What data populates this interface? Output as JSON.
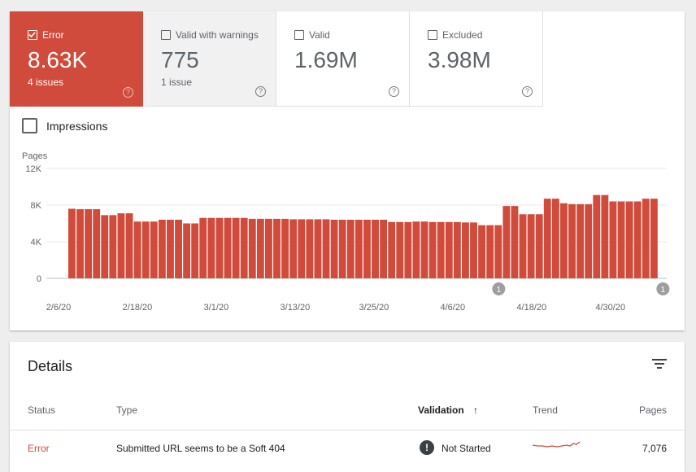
{
  "tiles": [
    {
      "label": "Error",
      "value": "8.63K",
      "sub": "4 issues",
      "checked": true
    },
    {
      "label": "Valid with warnings",
      "value": "775",
      "sub": "1 issue",
      "checked": false
    },
    {
      "label": "Valid",
      "value": "1.69M",
      "sub": "",
      "checked": false
    },
    {
      "label": "Excluded",
      "value": "3.98M",
      "sub": "",
      "checked": false
    }
  ],
  "help_glyph": "?",
  "impressions_label": "Impressions",
  "chart_data": {
    "type": "bar",
    "ylabel": "Pages",
    "ylim": [
      0,
      12000
    ],
    "yticks": [
      0,
      4000,
      8000,
      12000
    ],
    "ytick_labels": [
      "0",
      "4K",
      "8K",
      "12K"
    ],
    "xtick_labels": [
      "2/6/20",
      "2/18/20",
      "3/1/20",
      "3/13/20",
      "3/25/20",
      "4/6/20",
      "4/18/20",
      "4/30/20"
    ],
    "xtick_indices": [
      0,
      12,
      24,
      36,
      48,
      60,
      72,
      84
    ],
    "annotations": [
      {
        "index": 67,
        "label": "1"
      },
      {
        "index": 92,
        "label": "1"
      }
    ],
    "values": [
      7600,
      7550,
      7550,
      7550,
      6900,
      6900,
      7100,
      7100,
      6200,
      6200,
      6200,
      6400,
      6400,
      6400,
      6000,
      6000,
      6600,
      6600,
      6600,
      6600,
      6600,
      6600,
      6500,
      6500,
      6500,
      6500,
      6500,
      6450,
      6450,
      6450,
      6450,
      6450,
      6400,
      6400,
      6400,
      6400,
      6400,
      6400,
      6400,
      6150,
      6150,
      6150,
      6200,
      6200,
      6150,
      6150,
      6150,
      6150,
      6100,
      6100,
      5800,
      5800,
      5800,
      7900,
      7900,
      7000,
      7000,
      7000,
      8700,
      8700,
      8200,
      8100,
      8100,
      8100,
      9100,
      9100,
      8400,
      8400,
      8400,
      8400,
      8700,
      8700
    ]
  },
  "details": {
    "title": "Details",
    "columns": {
      "status": "Status",
      "type": "Type",
      "validation": "Validation",
      "sort_arrow": "↑",
      "trend": "Trend",
      "pages": "Pages"
    },
    "rows": [
      {
        "status": "Error",
        "type": "Submitted URL seems to be a Soft 404",
        "validation_icon": "!",
        "validation": "Not Started",
        "pages": "7,076"
      }
    ]
  },
  "colors": {
    "error": "#d04b3b",
    "bar": "#d04b3b",
    "grid": "#e8e8e8",
    "trend": "#d04b3b"
  }
}
